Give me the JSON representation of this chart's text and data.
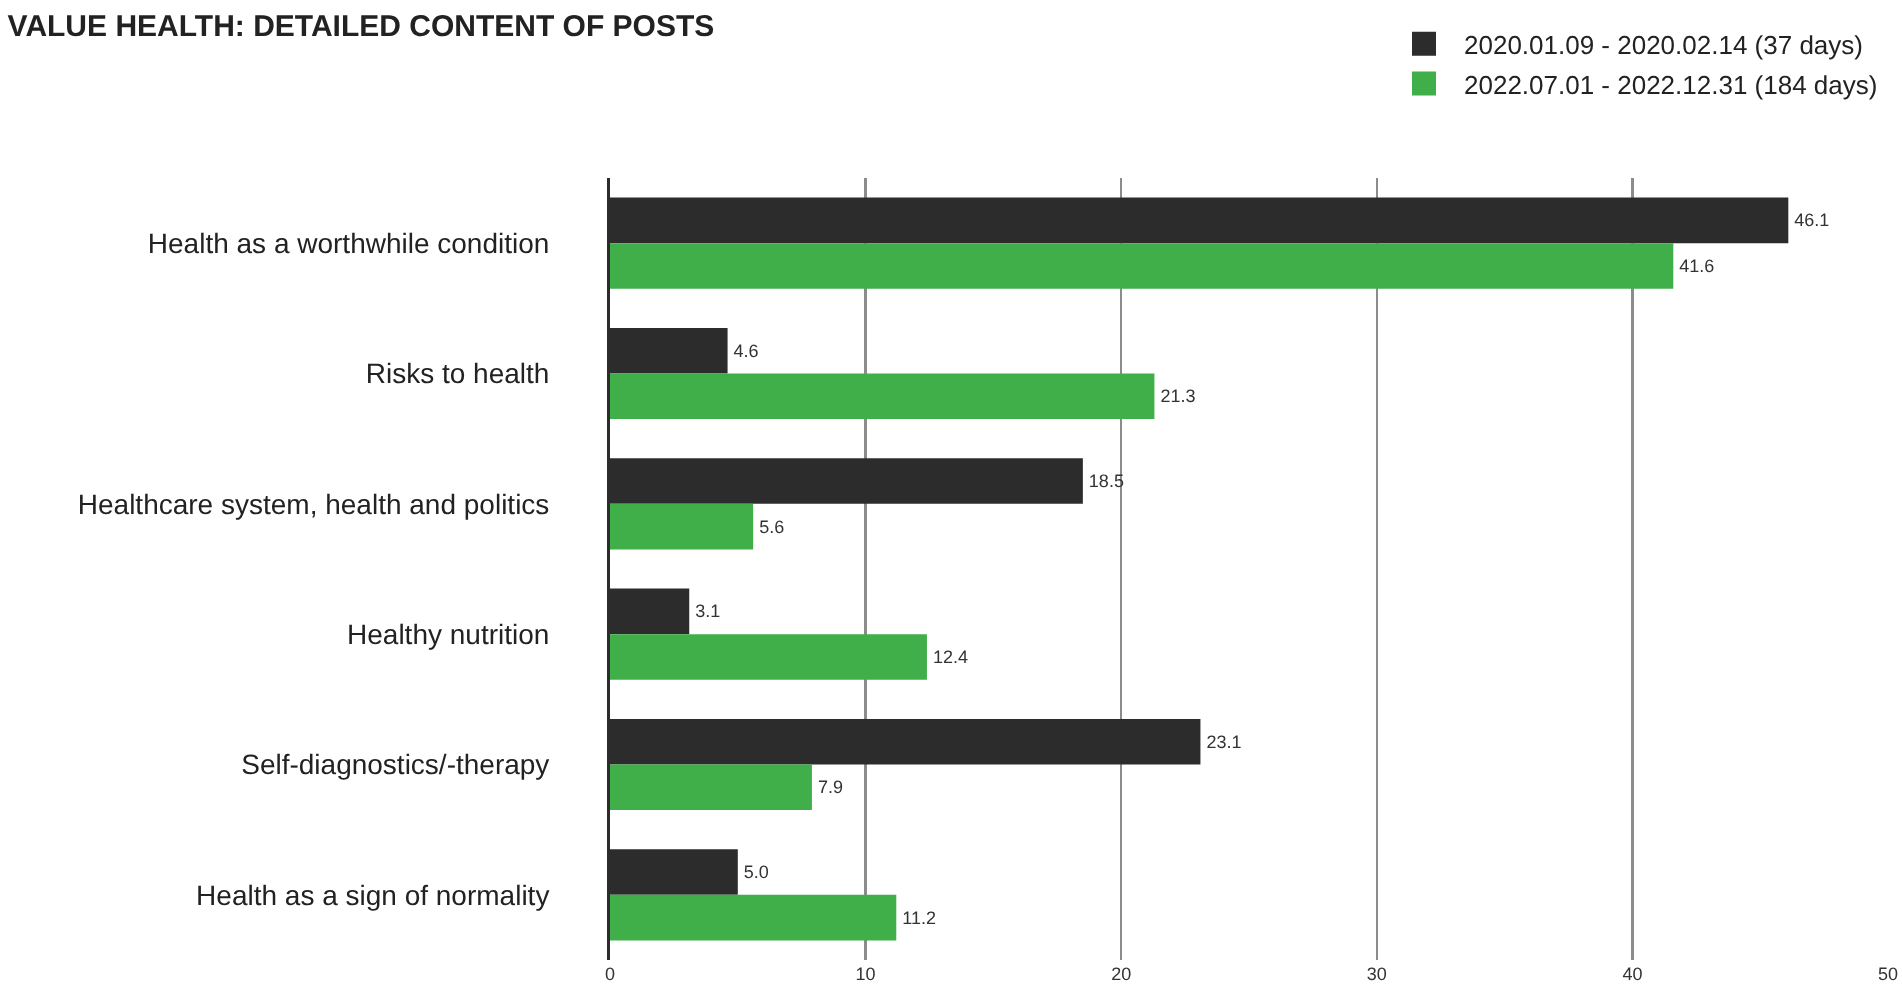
{
  "chart_data": {
    "type": "bar",
    "orientation": "horizontal",
    "title": "VALUE HEALTH: DETAILED CONTENT OF POSTS",
    "categories": [
      "Health as a worthwhile condition",
      "Risks to health",
      "Healthcare system, health and politics",
      "Healthy nutrition",
      "Self-diagnostics/-therapy",
      "Health as a sign of normality"
    ],
    "series": [
      {
        "name": "2020.01.09 - 2020.02.14 (37 days)",
        "color": "#2b2c2b",
        "values": [
          46.1,
          4.6,
          18.5,
          3.1,
          23.1,
          5.0
        ],
        "value_labels": [
          "46.1",
          "4.6",
          "18.5",
          "3.1",
          "23.1",
          "5.0"
        ]
      },
      {
        "name": "2022.07.01 - 2022.12.31 (184 days)",
        "color": "#40ae49",
        "values": [
          41.6,
          21.3,
          5.6,
          12.4,
          7.9,
          11.2
        ],
        "value_labels": [
          "41.6",
          "21.3",
          "5.6",
          "12.4",
          "7.9",
          "11.2"
        ]
      }
    ],
    "xlim": [
      0,
      50
    ],
    "xticks": [
      0,
      10,
      20,
      30,
      40,
      50
    ],
    "grid": "x",
    "legend": "top right"
  }
}
